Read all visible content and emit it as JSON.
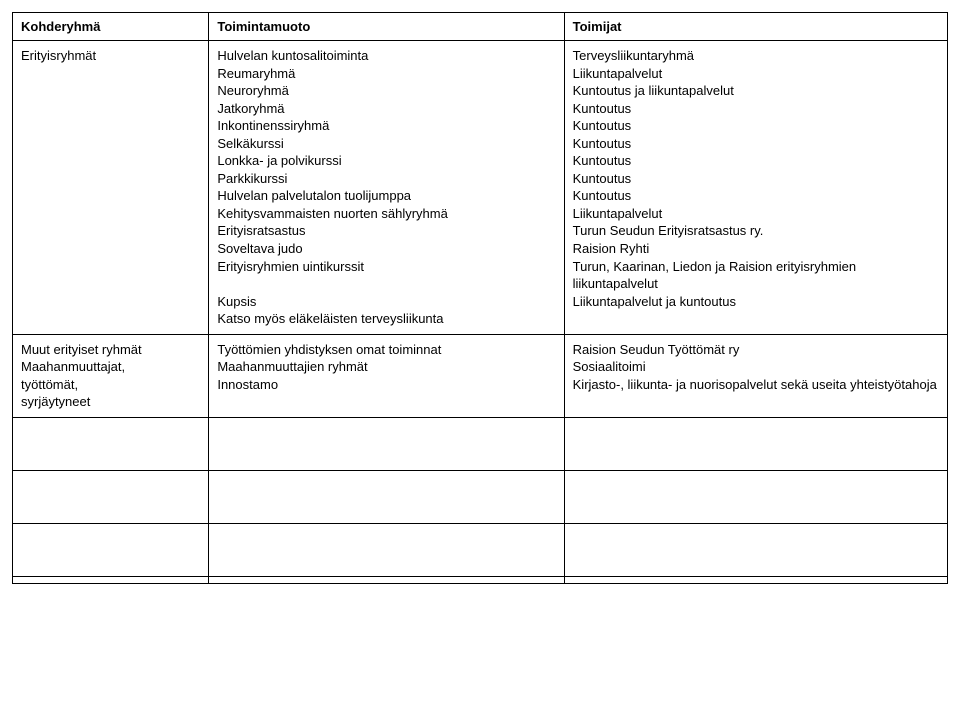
{
  "headers": {
    "col1": "Kohderyhmä",
    "col2": "Toimintamuoto",
    "col3": "Toimijat"
  },
  "row1": {
    "group": "Erityisryhmät",
    "activities": [
      "Hulvelan kuntosalitoiminta",
      "Reumaryhmä",
      "Neuroryhmä",
      "Jatkoryhmä",
      "Inkontinenssiryhmä",
      "Selkäkurssi",
      "Lonkka- ja polvikurssi",
      "Parkkikurssi",
      "Hulvelan palvelutalon tuolijumppa",
      "Kehitysvammaisten nuorten sählyryhmä",
      "Erityisratsastus",
      "Soveltava judo",
      "Erityisryhmien uintikurssit",
      "",
      "Kupsis",
      "Katso myös eläkeläisten terveysliikunta"
    ],
    "actors": [
      "Terveysliikuntaryhmä",
      "Liikuntapalvelut",
      "Kuntoutus ja liikuntapalvelut",
      "Kuntoutus",
      "Kuntoutus",
      "Kuntoutus",
      "Kuntoutus",
      "Kuntoutus",
      "Kuntoutus",
      "Liikuntapalvelut",
      "Turun Seudun Erityisratsastus ry.",
      "Raision Ryhti",
      "Turun, Kaarinan, Liedon ja Raision erityisryhmien liikuntapalvelut",
      "Liikuntapalvelut ja kuntoutus"
    ]
  },
  "row2": {
    "group_lines": [
      "Muut erityiset ryhmät",
      "Maahanmuuttajat,",
      "työttömät,",
      "syrjäytyneet"
    ],
    "activities": [
      "Työttömien yhdistyksen omat toiminnat",
      "Maahanmuuttajien ryhmät",
      "Innostamo"
    ],
    "actors": [
      "Raision Seudun Työttömät ry",
      "Sosiaalitoimi",
      "Kirjasto-, liikunta- ja nuorisopalvelut sekä useita yhteistyötahoja"
    ]
  }
}
